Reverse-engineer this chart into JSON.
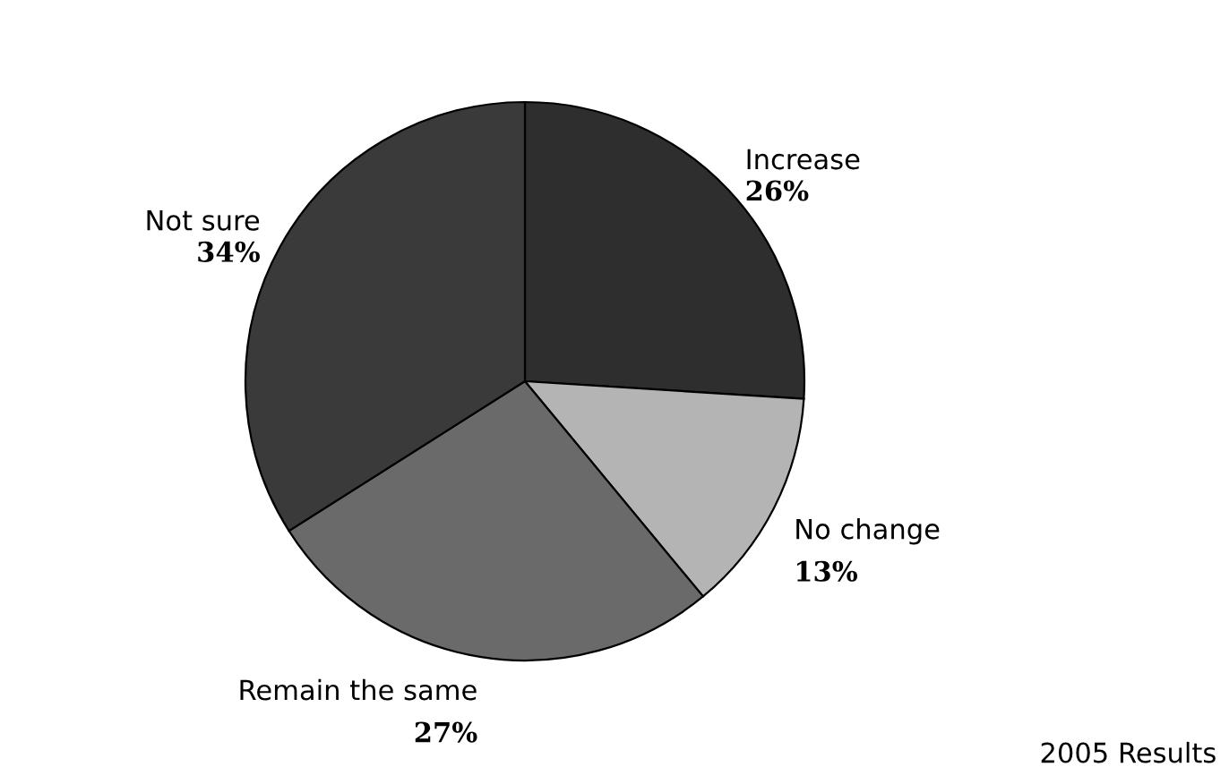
{
  "chart_data": {
    "type": "pie",
    "categories": [
      "Increase",
      "No change",
      "Remain the same",
      "Not sure"
    ],
    "values": [
      26,
      13,
      27,
      34
    ],
    "value_labels": [
      "26%",
      "13%",
      "27%",
      "34%"
    ],
    "colors": [
      "#2e2e2e",
      "#b4b4b4",
      "#6a6a6a",
      "#3a3a3a"
    ],
    "annotations": [
      "2005 Results"
    ],
    "legend": false
  }
}
